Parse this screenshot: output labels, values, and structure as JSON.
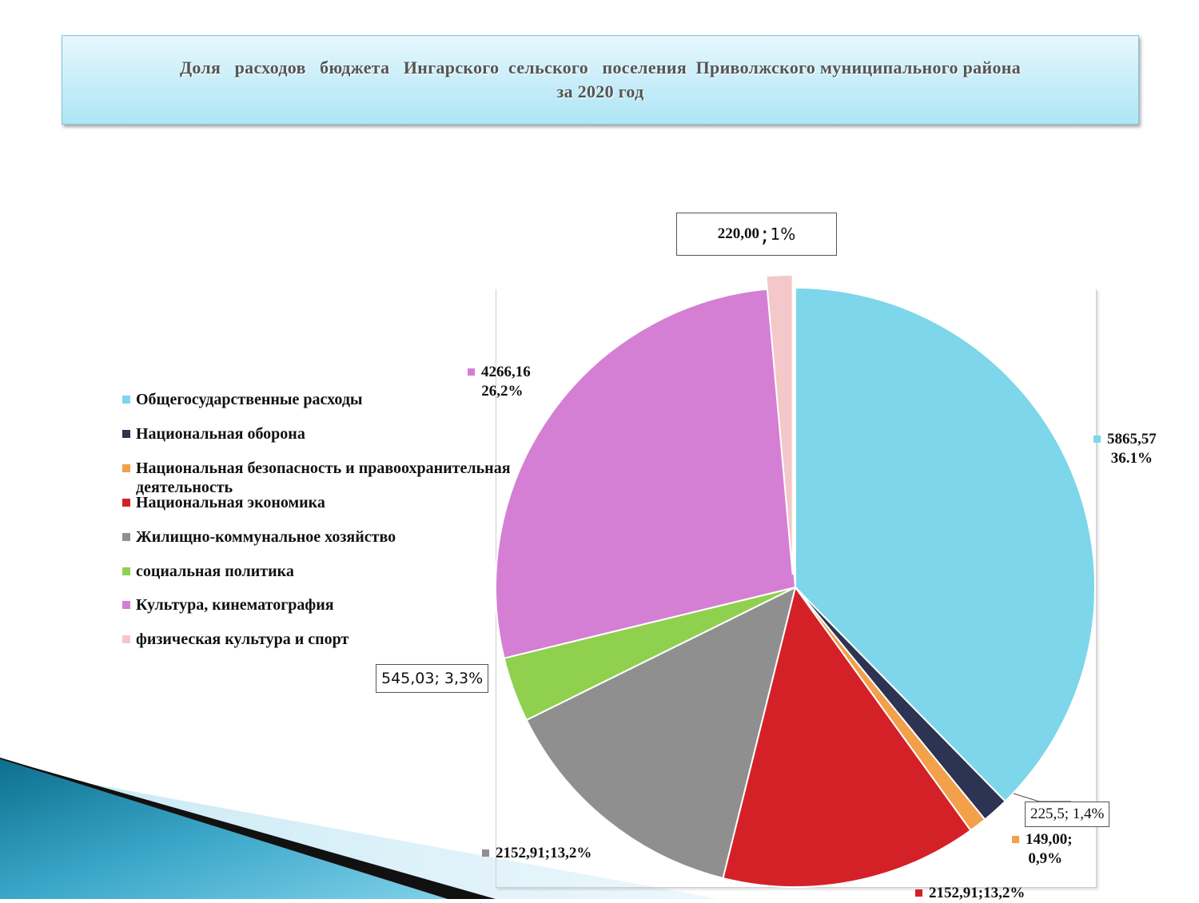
{
  "title": {
    "line1": "Доля   расходов   бюджета   Ингарского  сельского   поселения  Приволжского муниципального района",
    "line2": "за 2020 год"
  },
  "chart_data": {
    "type": "pie",
    "title": "Доля расходов бюджета Ингарского сельского поселения Приволжского муниципального района за 2020 год",
    "legend_position": "left",
    "slices": [
      {
        "name": "Общегосударственные расходы",
        "value": 5865.57,
        "percent": 36.1,
        "label": "5865,57",
        "label2": "36.1%",
        "color": "#7dd6ea"
      },
      {
        "name": "Национальная оборона",
        "value": 225.5,
        "percent": 1.4,
        "label": "225,5; 1,4%",
        "color": "#2d3352"
      },
      {
        "name": "Национальная  безопасность и правоохранительная деятельность",
        "value": 149.0,
        "percent": 0.9,
        "label": "149,00;",
        "label2": "0,9%",
        "color": "#f2a04a"
      },
      {
        "name": "Национальная экономика",
        "value": 2152.91,
        "percent": 13.2,
        "label": "2152,91;13,2%",
        "color": "#d42128"
      },
      {
        "name": "Жилищно-коммунальное хозяйство",
        "value": 2152.91,
        "percent": 13.2,
        "label": "2152,91;13,2%",
        "color": "#8f8f8f"
      },
      {
        "name": "социальная политика",
        "value": 545.03,
        "percent": 3.3,
        "label": "545,03; 3,3%",
        "color": "#8fd14f"
      },
      {
        "name": "Культура, кинематография",
        "value": 4266.16,
        "percent": 26.2,
        "label": "4266,16",
        "label2": "26,2%",
        "color": "#d47fd4"
      },
      {
        "name": "физическая культура и спорт",
        "value": 220.0,
        "percent": 1.0,
        "label_a": "220,00",
        "label_b": ";",
        "label_c": " 1%",
        "color": "#f4c7c9"
      }
    ]
  }
}
